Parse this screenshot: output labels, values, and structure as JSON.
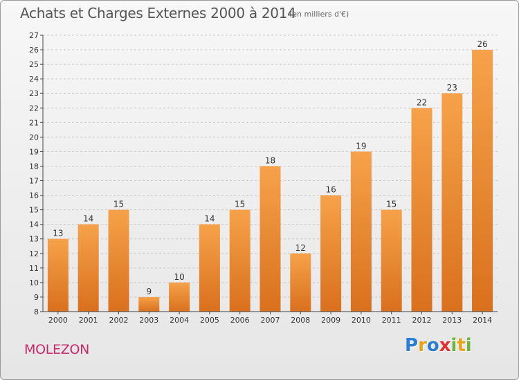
{
  "header": {
    "title": "Achats et Charges Externes 2000 à 2014",
    "subtitle": "(en milliers d'€)"
  },
  "footer": {
    "place": "MOLEZON",
    "logo_letters": [
      "P",
      "r",
      "o",
      "x",
      "i",
      "t",
      "i"
    ],
    "logo_colors": [
      "#2a7fd4",
      "#e8a417",
      "#2a7fd4",
      "#e03131",
      "#6db33f",
      "#e8a417",
      "#6db33f"
    ]
  },
  "chart_data": {
    "type": "bar",
    "title": "Achats et Charges Externes 2000 à 2014",
    "subtitle": "(en milliers d'€)",
    "categories": [
      "2000",
      "2001",
      "2002",
      "2003",
      "2004",
      "2005",
      "2006",
      "2007",
      "2008",
      "2009",
      "2010",
      "2011",
      "2012",
      "2013",
      "2014"
    ],
    "values": [
      13,
      14,
      15,
      9,
      10,
      14,
      15,
      18,
      12,
      16,
      19,
      15,
      22,
      23,
      26
    ],
    "ylim": [
      8,
      27
    ],
    "yticks": [
      8,
      9,
      10,
      11,
      12,
      13,
      14,
      15,
      16,
      17,
      18,
      19,
      20,
      21,
      22,
      23,
      24,
      25,
      26,
      27
    ],
    "grid": "horizontal-dashed",
    "bar_color_top": "#f6a24a",
    "bar_color_bottom": "#d9701e"
  }
}
